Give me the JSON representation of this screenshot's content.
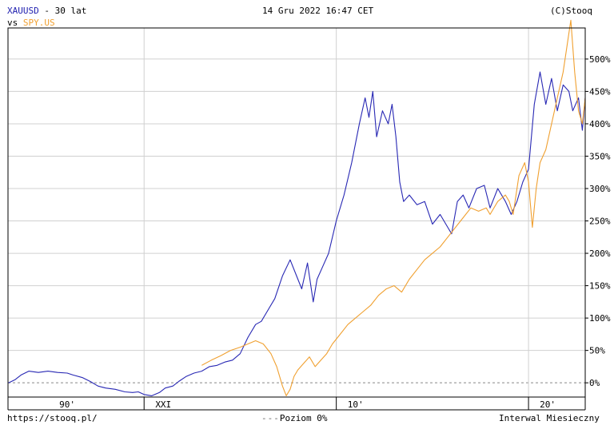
{
  "header": {
    "symbol": "XAUUSD",
    "range_label": "- 30 lat",
    "vs_label": "vs",
    "compare_symbol": "SPY.US",
    "datetime": "14 Gru 2022 16:47 CET",
    "copyright": "(C)Stooq"
  },
  "footer": {
    "url": "https://stooq.pl/",
    "level_label": "Poziom 0%",
    "interval_label": "Interwal Miesieczny"
  },
  "colors": {
    "xauusd": "#2828b4",
    "spy": "#f0a030",
    "grid": "#d0d0d0",
    "frame": "#000000"
  },
  "chart_data": {
    "type": "line",
    "title": "XAUUSD - 30 lat vs SPY.US",
    "ylim": [
      -22,
      548
    ],
    "xlim": [
      1992.92,
      2022.95
    ],
    "y_ticks": [
      "0%",
      "50%",
      "100%",
      "150%",
      "200%",
      "250%",
      "300%",
      "350%",
      "400%",
      "450%",
      "500%"
    ],
    "x_ticks": [
      {
        "label": "90'",
        "x": 1996.0
      },
      {
        "label": "XXI",
        "x": 2001.0
      },
      {
        "label": "10'",
        "x": 2011.0
      },
      {
        "label": "20'",
        "x": 2021.0
      }
    ],
    "x_gridlines": [
      2000.0,
      2010.0,
      2020.0
    ],
    "series": [
      {
        "name": "XAUUSD",
        "x": [
          1992.95,
          1993.3,
          1993.6,
          1994.0,
          1994.5,
          1995.0,
          1995.5,
          1996.0,
          1996.3,
          1996.8,
          1997.2,
          1997.6,
          1998.0,
          1998.5,
          1999.0,
          1999.4,
          1999.7,
          2000.0,
          2000.4,
          2000.8,
          2001.1,
          2001.5,
          2001.8,
          2002.2,
          2002.6,
          2003.0,
          2003.4,
          2003.8,
          2004.2,
          2004.6,
          2005.0,
          2005.4,
          2005.8,
          2006.1,
          2006.4,
          2006.8,
          2007.2,
          2007.6,
          2008.0,
          2008.2,
          2008.5,
          2008.8,
          2009.0,
          2009.3,
          2009.6,
          2010.0,
          2010.4,
          2010.8,
          2011.2,
          2011.5,
          2011.7,
          2011.9,
          2012.1,
          2012.4,
          2012.7,
          2012.9,
          2013.1,
          2013.3,
          2013.5,
          2013.8,
          2014.2,
          2014.6,
          2015.0,
          2015.4,
          2015.8,
          2016.0,
          2016.3,
          2016.6,
          2016.9,
          2017.3,
          2017.7,
          2018.0,
          2018.4,
          2018.8,
          2019.1,
          2019.4,
          2019.7,
          2020.0,
          2020.3,
          2020.6,
          2020.9,
          2021.2,
          2021.5,
          2021.8,
          2022.1,
          2022.3,
          2022.6,
          2022.8,
          2022.95
        ],
        "values": [
          0,
          5,
          12,
          18,
          16,
          18,
          16,
          15,
          12,
          8,
          2,
          -5,
          -8,
          -10,
          -14,
          -15,
          -14,
          -18,
          -20,
          -15,
          -8,
          -5,
          2,
          10,
          15,
          18,
          25,
          27,
          32,
          35,
          45,
          70,
          90,
          95,
          110,
          130,
          165,
          190,
          160,
          145,
          185,
          125,
          160,
          180,
          200,
          250,
          290,
          340,
          400,
          440,
          410,
          450,
          380,
          420,
          400,
          430,
          380,
          310,
          280,
          290,
          275,
          280,
          245,
          260,
          240,
          230,
          280,
          290,
          270,
          300,
          305,
          270,
          300,
          280,
          260,
          280,
          310,
          330,
          430,
          480,
          430,
          470,
          420,
          460,
          450,
          420,
          440,
          390,
          440
        ],
        "color": "#2828b4"
      },
      {
        "name": "SPY.US",
        "x": [
          2003.0,
          2003.5,
          2004.0,
          2004.5,
          2005.0,
          2005.4,
          2005.8,
          2006.2,
          2006.6,
          2006.9,
          2007.2,
          2007.4,
          2007.6,
          2007.8,
          2008.0,
          2008.3,
          2008.6,
          2008.9,
          2009.2,
          2009.5,
          2009.8,
          2010.2,
          2010.6,
          2011.0,
          2011.4,
          2011.8,
          2012.2,
          2012.6,
          2013.0,
          2013.4,
          2013.8,
          2014.2,
          2014.6,
          2015.0,
          2015.4,
          2015.8,
          2016.2,
          2016.6,
          2017.0,
          2017.4,
          2017.8,
          2018.0,
          2018.4,
          2018.8,
          2019.0,
          2019.2,
          2019.5,
          2019.8,
          2020.0,
          2020.2,
          2020.4,
          2020.6,
          2020.9,
          2021.2,
          2021.5,
          2021.8,
          2022.0,
          2022.2,
          2022.4,
          2022.6,
          2022.8,
          2022.95
        ],
        "values": [
          27,
          35,
          42,
          50,
          55,
          60,
          65,
          60,
          45,
          25,
          -5,
          -20,
          -10,
          10,
          20,
          30,
          40,
          25,
          35,
          45,
          60,
          75,
          90,
          100,
          110,
          120,
          135,
          145,
          150,
          140,
          160,
          175,
          190,
          200,
          210,
          225,
          240,
          255,
          270,
          265,
          270,
          260,
          280,
          290,
          280,
          260,
          320,
          340,
          310,
          240,
          300,
          340,
          360,
          400,
          440,
          480,
          520,
          560,
          480,
          420,
          400,
          440
        ],
        "color": "#f0a030"
      }
    ]
  }
}
